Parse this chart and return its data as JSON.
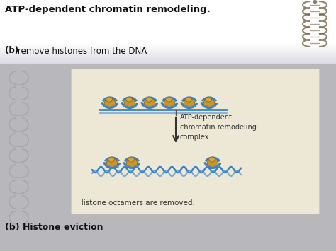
{
  "title": "ATP-dependent chromatin remodeling.",
  "subtitle_b": "(b)",
  "subtitle_text": " remove histones from the DNA",
  "box_label": "(b) Histone eviction",
  "arrow_label": "ATP-dependent\nchromatin remodeling\ncomplex",
  "caption": "Histone octamers are removed.",
  "top_bg": "#ffffff",
  "bottom_bg": "#c8c8cc",
  "box_bg": "#ede8d5",
  "box_edge": "#ccccbb",
  "dna_color": "#3a80c0",
  "dna_color2": "#5090d0",
  "histone_body": "#c8962a",
  "histone_top": "#d4a840",
  "histone_edge": "#8a6010",
  "dna_helix_color": "#7a6a50",
  "title_fontsize": 9.5,
  "body_fontsize": 8.5,
  "caption_fontsize": 7.5,
  "arrow_fontsize": 7
}
